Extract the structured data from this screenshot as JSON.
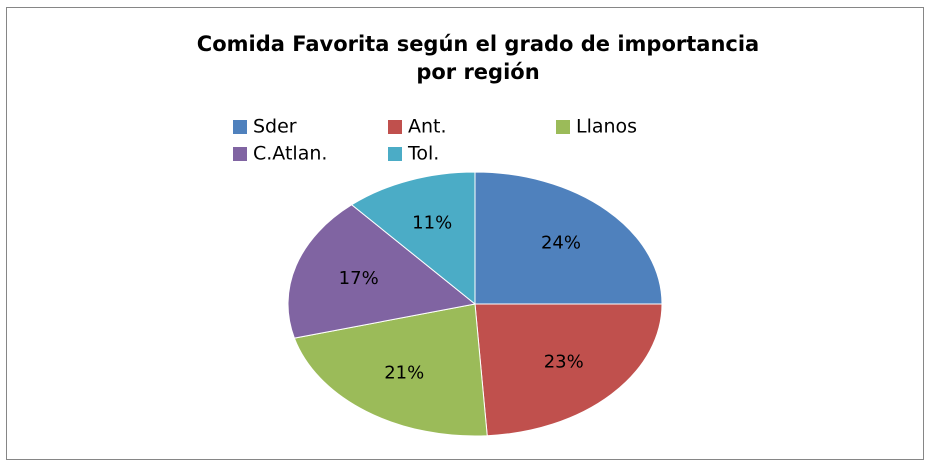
{
  "chart_data": {
    "type": "pie",
    "title": [
      "Comida Favorita según el grado de importancia",
      "por región"
    ],
    "categories": [
      "Sder",
      "Ant.",
      "Llanos",
      "C.Atlan.",
      "Tol."
    ],
    "values": [
      24,
      23,
      21,
      17,
      11
    ],
    "value_labels": [
      "24%",
      "23%",
      "21%",
      "17%",
      "11%"
    ],
    "colors": [
      "#4f81bd",
      "#c0504d",
      "#9bbb59",
      "#8064a2",
      "#4bacc6"
    ],
    "legend": "top"
  }
}
